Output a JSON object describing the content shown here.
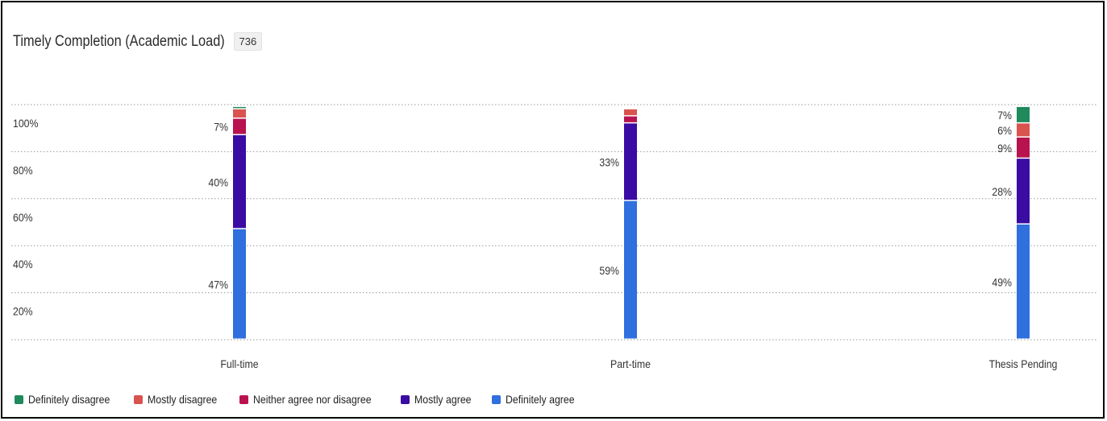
{
  "header": {
    "title": "Timely Completion (Academic Load)",
    "count": "736"
  },
  "chart_data": {
    "type": "bar",
    "stacked": true,
    "orientation": "vertical",
    "title": "Timely Completion (Academic Load)",
    "categories": [
      "Full-time",
      "Part-time",
      "Thesis Pending"
    ],
    "y_ticks": [
      "100%",
      "80%",
      "60%",
      "40%",
      "20%"
    ],
    "ylim": [
      0,
      100
    ],
    "grid": true,
    "legend_position": "bottom-left",
    "series": [
      {
        "name": "Definitely agree",
        "color": "#2f6fde",
        "values": [
          47,
          59,
          49
        ],
        "labels": [
          "47%",
          "59%",
          "49%"
        ]
      },
      {
        "name": "Mostly agree",
        "color": "#3a0ca3",
        "values": [
          40,
          33,
          28
        ],
        "labels": [
          "40%",
          "33%",
          "28%"
        ]
      },
      {
        "name": "Neither agree nor disagree",
        "color": "#b8134f",
        "values": [
          7,
          3,
          9
        ],
        "labels": [
          "7%",
          "",
          "9%"
        ]
      },
      {
        "name": "Mostly disagree",
        "color": "#d9534f",
        "values": [
          4,
          3,
          6
        ],
        "labels": [
          "",
          "",
          "6%"
        ]
      },
      {
        "name": "Definitely disagree",
        "color": "#1f8a5b",
        "values": [
          1,
          0,
          7
        ],
        "labels": [
          "",
          "",
          "7%"
        ]
      }
    ],
    "legend_order": [
      "Definitely disagree",
      "Mostly disagree",
      "Neither agree nor disagree",
      "Mostly agree",
      "Definitely agree"
    ]
  }
}
